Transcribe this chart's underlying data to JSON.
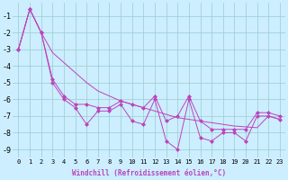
{
  "xlabel": "Windchill (Refroidissement éolien,°C)",
  "hours": [
    0,
    1,
    2,
    3,
    4,
    5,
    6,
    7,
    8,
    9,
    10,
    11,
    12,
    13,
    14,
    15,
    16,
    17,
    18,
    19,
    20,
    21,
    22,
    23
  ],
  "line_jagged": [
    -3.0,
    -0.6,
    -2.0,
    -5.0,
    -6.0,
    -6.5,
    -7.5,
    -6.7,
    -6.7,
    -6.3,
    -7.3,
    -7.5,
    -6.0,
    -8.5,
    -9.0,
    -6.0,
    -8.3,
    -8.5,
    -8.0,
    -8.0,
    -8.5,
    -7.0,
    -7.0,
    -7.2
  ],
  "line_trend": [
    -3.0,
    -0.6,
    -2.0,
    -3.2,
    -3.8,
    -4.4,
    -5.0,
    -5.5,
    -5.8,
    -6.1,
    -6.3,
    -6.5,
    -6.7,
    -6.9,
    -7.1,
    -7.2,
    -7.3,
    -7.4,
    -7.5,
    -7.6,
    -7.65,
    -7.7,
    -7.0,
    -7.2
  ],
  "line_upper": [
    -3.0,
    -0.6,
    -2.0,
    -4.8,
    -5.8,
    -6.3,
    -6.3,
    -6.5,
    -6.5,
    -6.1,
    -6.3,
    -6.5,
    -5.8,
    -7.3,
    -7.0,
    -5.8,
    -7.3,
    -7.8,
    -7.8,
    -7.8,
    -7.8,
    -6.8,
    -6.8,
    -7.0
  ],
  "bg_color": "#cceeff",
  "grid_color": "#99cccc",
  "line_color": "#bb44bb",
  "ylim": [
    -9.5,
    -0.2
  ],
  "xlim": [
    -0.5,
    23.5
  ],
  "yticks": [
    -1,
    -2,
    -3,
    -4,
    -5,
    -6,
    -7,
    -8,
    -9
  ],
  "xticks": [
    0,
    1,
    2,
    3,
    4,
    5,
    6,
    7,
    8,
    9,
    10,
    11,
    12,
    13,
    14,
    15,
    16,
    17,
    18,
    19,
    20,
    21,
    22,
    23
  ],
  "tick_fontsize": 5,
  "xlabel_fontsize": 5.5
}
